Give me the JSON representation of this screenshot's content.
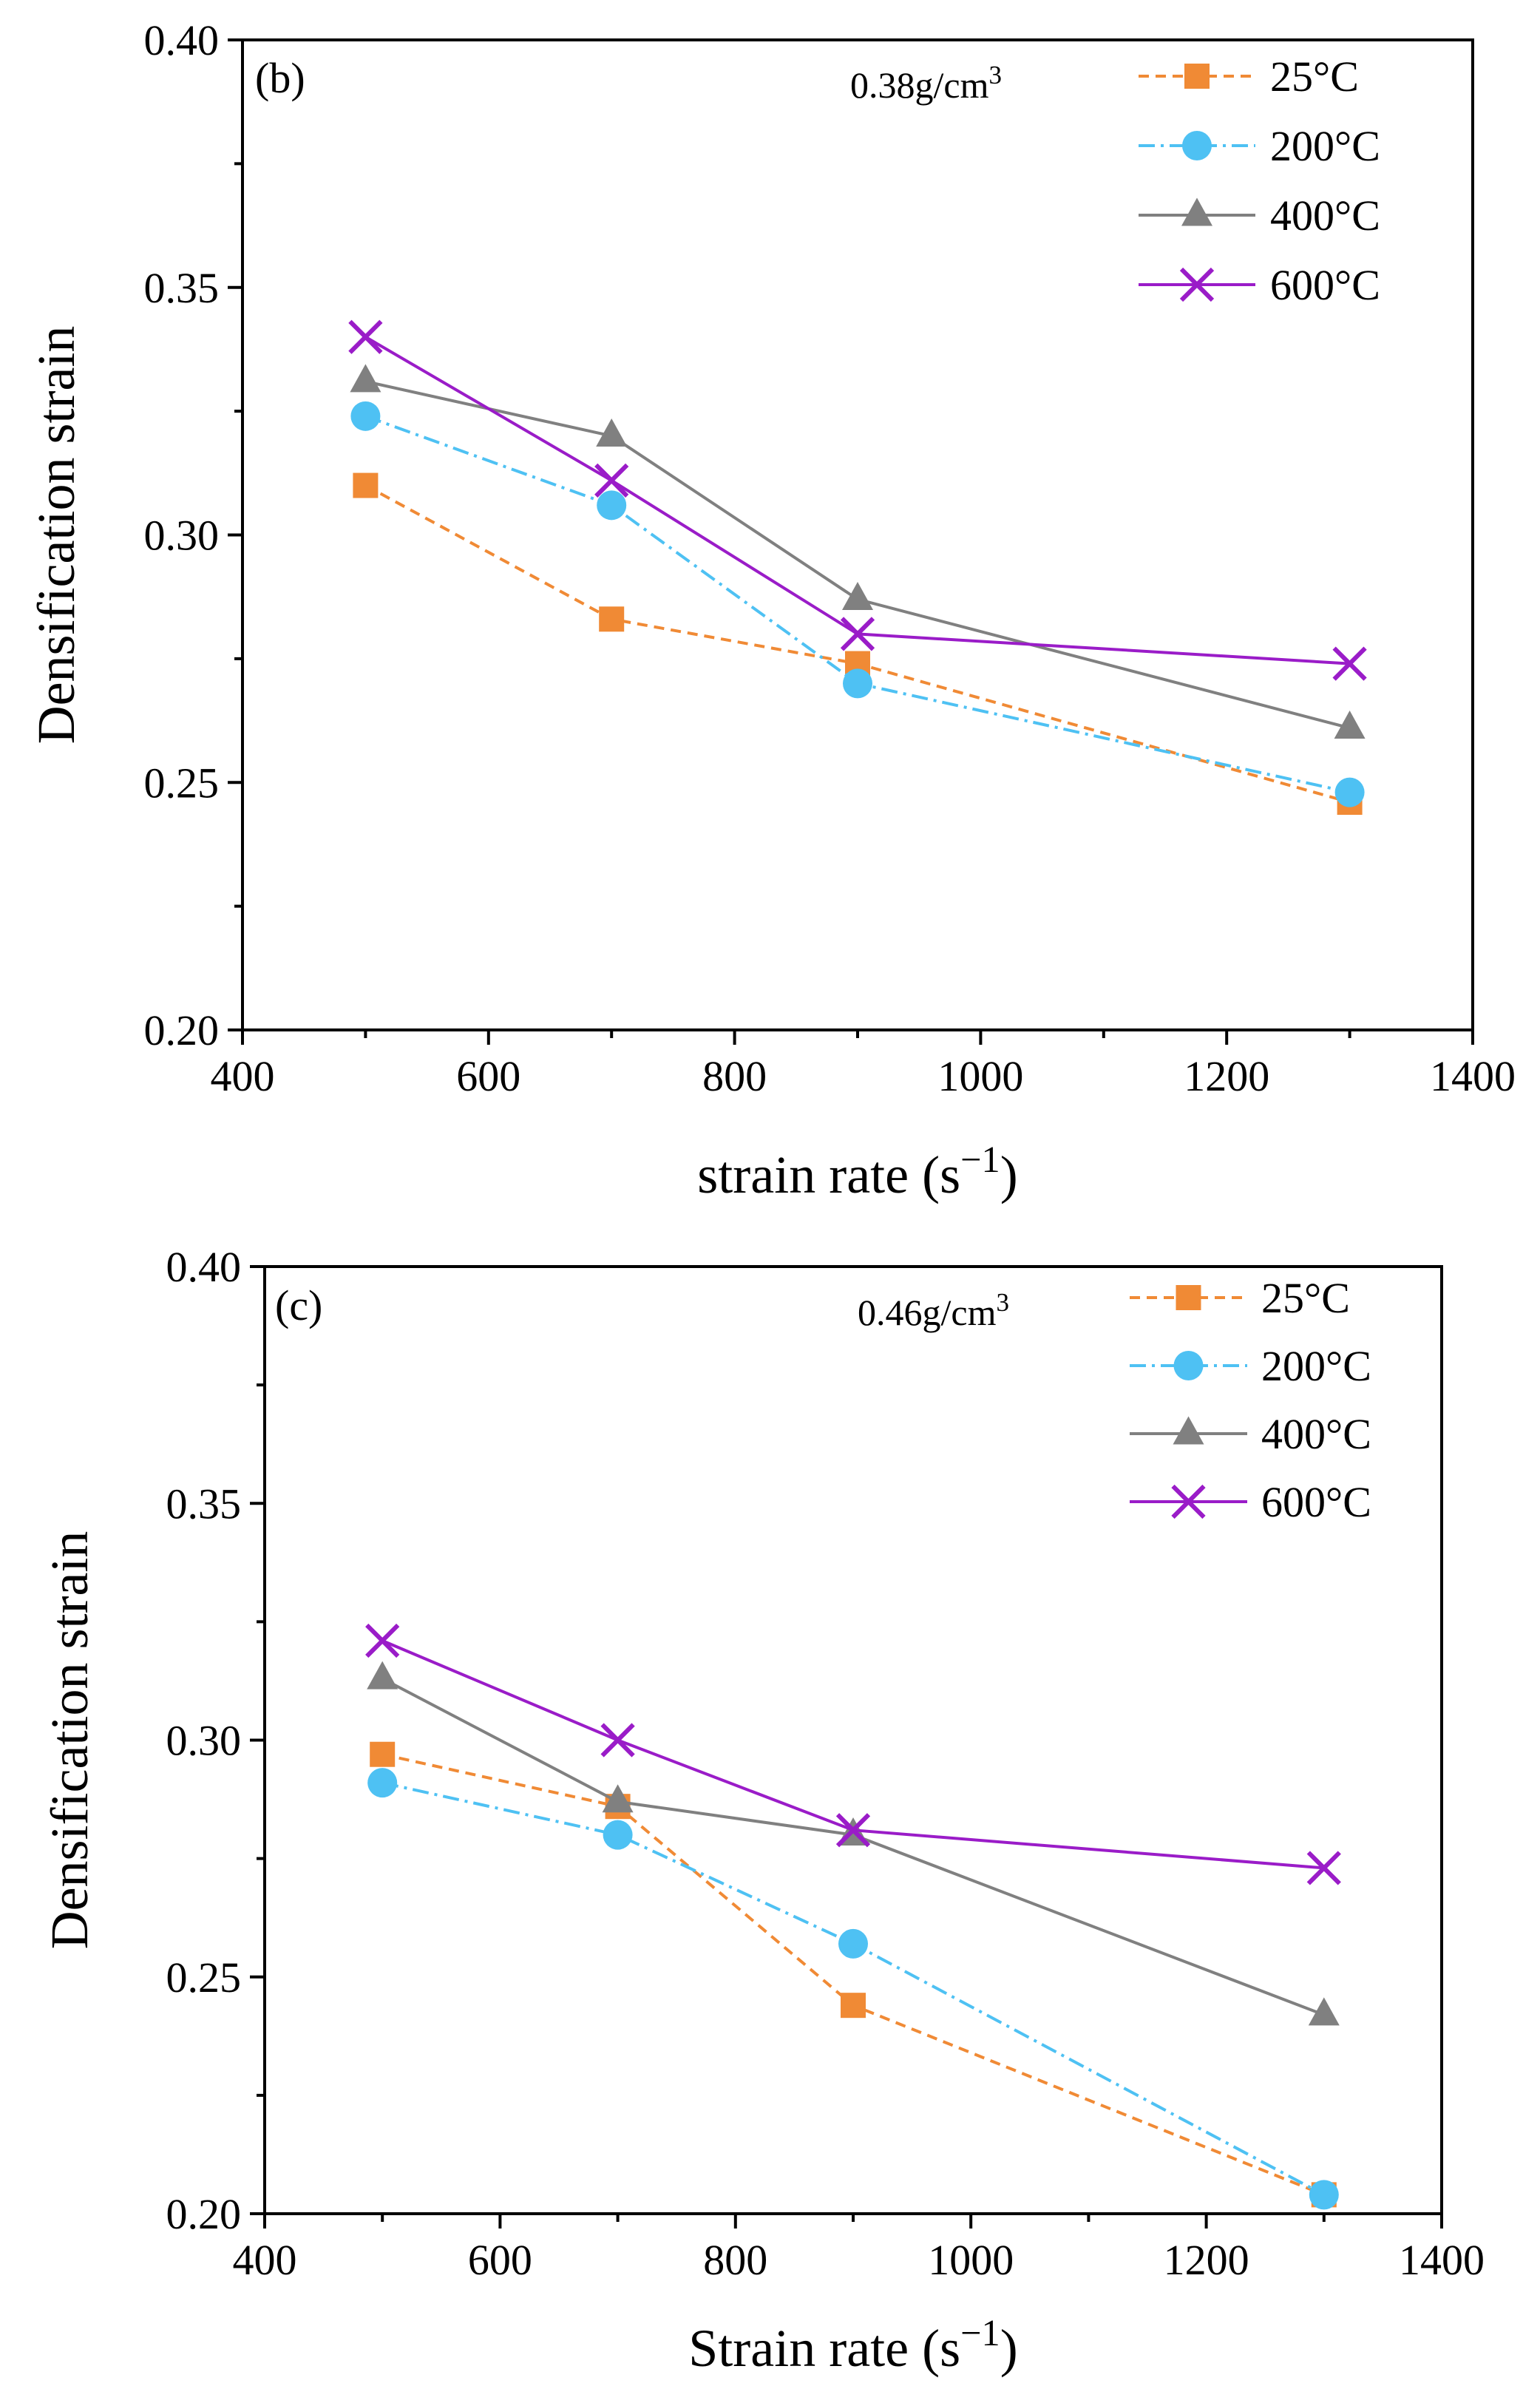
{
  "colors": {
    "25": "#F08A35",
    "200": "#4EC1F3",
    "400": "#808080",
    "600": "#9A1CC8",
    "axis": "#000000"
  },
  "legend": {
    "labels": [
      "25°C",
      "200°C",
      "400°C",
      "600°C"
    ]
  },
  "chart_data": [
    {
      "type": "line",
      "panel_label": "(b)",
      "density_label": {
        "main": "0.38g/cm",
        "sup": "3"
      },
      "xlabel": {
        "main": "strain rate (s",
        "sup": "−1",
        "close": ")"
      },
      "ylabel": "Densification strain",
      "xlim": [
        400,
        1400
      ],
      "ylim": [
        0.2,
        0.4
      ],
      "x_ticks": [
        400,
        600,
        800,
        1000,
        1200,
        1400
      ],
      "x_tick_labels": [
        "400",
        "600",
        "800",
        "1000",
        "1200",
        "1400"
      ],
      "y_ticks": [
        0.2,
        0.25,
        0.3,
        0.35,
        0.4
      ],
      "y_tick_labels": [
        "0.20",
        "0.25",
        "0.30",
        "0.35",
        "0.40"
      ],
      "grid": false,
      "legend_position": "top-right",
      "x": [
        500,
        700,
        900,
        1300
      ],
      "series": [
        {
          "name": "25°C",
          "key": "25",
          "marker": "square",
          "line": "dashed",
          "values": [
            0.31,
            0.283,
            0.274,
            0.246
          ]
        },
        {
          "name": "200°C",
          "key": "200",
          "marker": "circle",
          "line": "dashdot",
          "values": [
            0.324,
            0.306,
            0.27,
            0.248
          ]
        },
        {
          "name": "400°C",
          "key": "400",
          "marker": "triangle",
          "line": "solid",
          "values": [
            0.331,
            0.32,
            0.287,
            0.261
          ]
        },
        {
          "name": "600°C",
          "key": "600",
          "marker": "cross",
          "line": "solid",
          "values": [
            0.34,
            0.311,
            0.28,
            0.274
          ]
        }
      ]
    },
    {
      "type": "line",
      "panel_label": "(c)",
      "density_label": {
        "main": "0.46g/cm",
        "sup": "3"
      },
      "xlabel": {
        "main": "Strain rate (s",
        "sup": "−1",
        "close": ")"
      },
      "ylabel": "Densification strain",
      "xlim": [
        400,
        1400
      ],
      "ylim": [
        0.2,
        0.4
      ],
      "x_ticks": [
        400,
        600,
        800,
        1000,
        1200,
        1400
      ],
      "x_tick_labels": [
        "400",
        "600",
        "800",
        "1000",
        "1200",
        "1400"
      ],
      "y_ticks": [
        0.2,
        0.25,
        0.3,
        0.35,
        0.4
      ],
      "y_tick_labels": [
        "0.20",
        "0.25",
        "0.30",
        "0.35",
        "0.40"
      ],
      "grid": false,
      "legend_position": "top-right",
      "x": [
        500,
        700,
        900,
        1300
      ],
      "series": [
        {
          "name": "25°C",
          "key": "25",
          "marker": "square",
          "line": "dashed",
          "values": [
            0.297,
            0.286,
            0.244,
            0.204
          ]
        },
        {
          "name": "200°C",
          "key": "200",
          "marker": "circle",
          "line": "dashdot",
          "values": [
            0.291,
            0.28,
            0.257,
            0.204
          ]
        },
        {
          "name": "400°C",
          "key": "400",
          "marker": "triangle",
          "line": "solid",
          "values": [
            0.313,
            0.287,
            0.28,
            0.242
          ]
        },
        {
          "name": "600°C",
          "key": "600",
          "marker": "cross",
          "line": "solid",
          "values": [
            0.321,
            0.3,
            0.281,
            0.273
          ]
        }
      ]
    }
  ]
}
